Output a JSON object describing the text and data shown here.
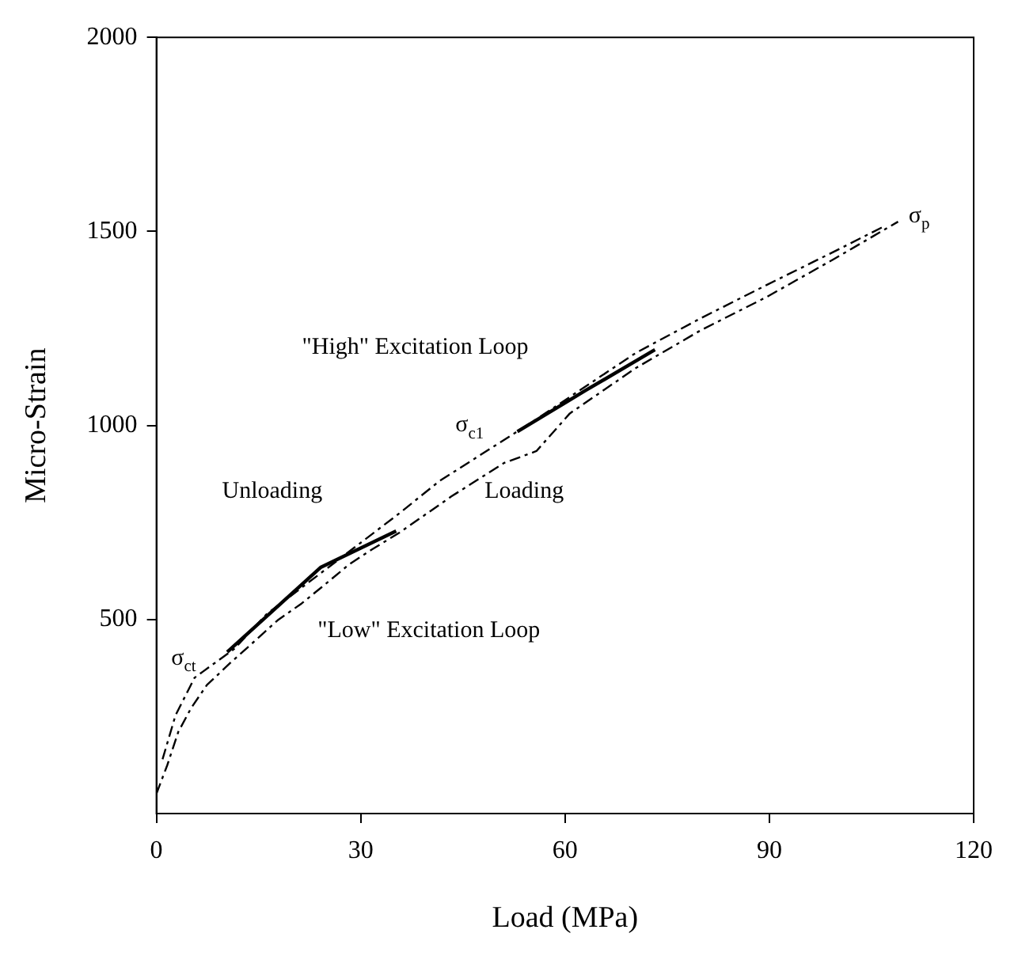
{
  "chart_data": {
    "type": "line",
    "xlabel": "Load (MPa)",
    "ylabel": "Micro-Strain",
    "xlim": [
      0,
      120
    ],
    "xticks": [
      0,
      30,
      60,
      90,
      120
    ],
    "ylim": [
      0,
      2000
    ],
    "yticks": [
      500,
      1000,
      1500,
      2000
    ],
    "grid": false,
    "legend": false,
    "marker": "none",
    "series": [
      {
        "color": "#000000",
        "line_style": "dashed",
        "x": [
          0,
          1.6,
          3.2,
          5.1,
          7.4,
          10.9,
          14.4,
          17.8,
          21.3,
          24.8,
          28.3,
          31.7,
          35.7,
          43.3,
          51.0,
          55.8,
          60.7,
          70.4,
          79.9,
          89.6,
          99.4,
          108.9
        ],
        "values": [
          51,
          125,
          210,
          272,
          331,
          389,
          444,
          498,
          541,
          591,
          642,
          681,
          724,
          817,
          903,
          934,
          1031,
          1148,
          1245,
          1331,
          1428,
          1525
        ]
      },
      {
        "color": "#000000",
        "line_style": "dashed",
        "x": [
          106.5,
          99.4,
          89.6,
          79.9,
          70.4,
          55.8,
          41.5,
          35.7,
          24.1,
          16.2,
          11.4,
          5.6,
          2.8,
          0.9
        ],
        "values": [
          1510,
          1447,
          1362,
          1276,
          1187,
          1016,
          856,
          774,
          619,
          514,
          424,
          350,
          253,
          140
        ]
      },
      {
        "color": "#000000",
        "line_style": "solid",
        "x": [
          53.0,
          63.0,
          73.2
        ],
        "values": [
          984,
          1090,
          1195
        ]
      },
      {
        "color": "#000000",
        "line_style": "solid",
        "x": [
          10.4,
          24.1,
          35.2
        ],
        "values": [
          416,
          634,
          728
        ]
      }
    ],
    "annotations": [
      "σ$_{p}$",
      "σ$_{c1}$",
      "σ$_{ct}$",
      "\"High\" Excitation Loop",
      "Unloading",
      "Loading",
      "\"Low\" Excitation Loop"
    ]
  }
}
